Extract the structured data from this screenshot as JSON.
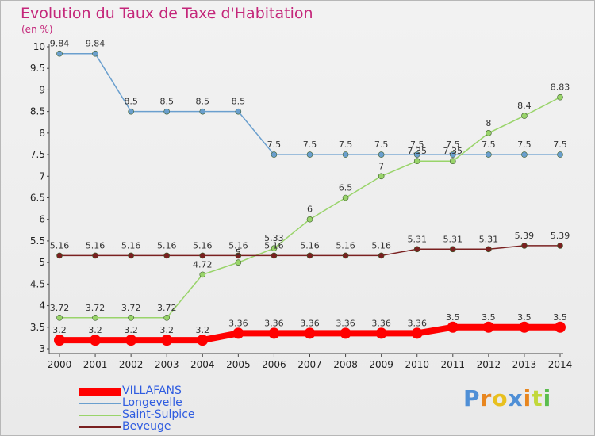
{
  "title": "Evolution du Taux de Taxe d'Habitation",
  "unit": "(en %)",
  "logo": {
    "letters": [
      "P",
      "r",
      "o",
      "x",
      "i",
      "t",
      "i"
    ],
    "colors": [
      "#4f8fd6",
      "#e8861f",
      "#e8c01f",
      "#4f8fd6",
      "#e8861f",
      "#c2d83a",
      "#5bbd4e"
    ]
  },
  "chart_data": {
    "type": "line",
    "x": [
      "2000",
      "2001",
      "2002",
      "2003",
      "2004",
      "2005",
      "2006",
      "2007",
      "2008",
      "2009",
      "2010",
      "2011",
      "2012",
      "2013",
      "2014"
    ],
    "ylim": [
      3,
      10
    ],
    "yticks": [
      "3",
      "3.5",
      "4",
      "4.5",
      "5",
      "5.5",
      "6",
      "6.5",
      "7",
      "7.5",
      "8",
      "8.5",
      "9",
      "9.5",
      "10"
    ],
    "grid": false,
    "legend_position": "bottom-left",
    "series": [
      {
        "name": "VILLAFANS",
        "color": "#ff0000",
        "values": [
          3.2,
          3.2,
          3.2,
          3.2,
          3.2,
          3.36,
          3.36,
          3.36,
          3.36,
          3.36,
          3.36,
          3.5,
          3.5,
          3.5,
          3.5
        ],
        "labels": [
          "3.2",
          "3.2",
          "3.2",
          "3.2",
          "3.2",
          "3.36",
          "3.36",
          "3.36",
          "3.36",
          "3.36",
          "3.36",
          "3.5",
          "3.5",
          "3.5",
          "3.5"
        ]
      },
      {
        "name": "Longevelle",
        "color": "#6a9fce",
        "values": [
          9.84,
          9.84,
          8.5,
          8.5,
          8.5,
          8.5,
          7.5,
          7.5,
          7.5,
          7.5,
          7.5,
          7.5,
          7.5,
          7.5,
          7.5
        ],
        "labels": [
          "9.84",
          "9.84",
          "8.5",
          "8.5",
          "8.5",
          "8.5",
          "7.5",
          "7.5",
          "7.5",
          "7.5",
          "7.5",
          "7.5",
          "7.5",
          "7.5",
          "7.5"
        ]
      },
      {
        "name": "Saint-Sulpice",
        "color": "#99d46a",
        "values": [
          3.72,
          3.72,
          3.72,
          3.72,
          4.72,
          5.0,
          5.33,
          6.0,
          6.5,
          7.0,
          7.35,
          7.35,
          8.0,
          8.4,
          8.83
        ],
        "labels": [
          "3.72",
          "3.72",
          "3.72",
          "3.72",
          "4.72",
          "5",
          "5.33",
          "6",
          "6.5",
          "7",
          "7.35",
          "7.35",
          "8",
          "8.4",
          "8.83"
        ]
      },
      {
        "name": "Beveuge",
        "color": "#7a2020",
        "values": [
          5.16,
          5.16,
          5.16,
          5.16,
          5.16,
          5.16,
          5.16,
          5.16,
          5.16,
          5.16,
          5.31,
          5.31,
          5.31,
          5.39,
          5.39
        ],
        "labels": [
          "5.16",
          "5.16",
          "5.16",
          "5.16",
          "5.16",
          "5.16",
          "5.16",
          "5.16",
          "5.16",
          "5.16",
          "5.31",
          "5.31",
          "5.31",
          "5.39",
          "5.39"
        ]
      }
    ]
  }
}
